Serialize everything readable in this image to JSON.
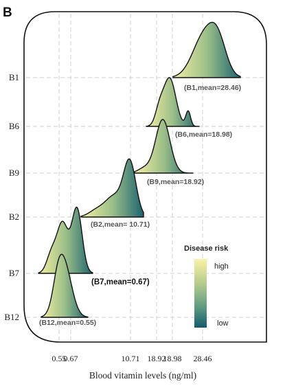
{
  "panel_label": "B",
  "chart_data": {
    "type": "ridgeline",
    "xlabel": "Blood vitamin levels (ng/ml)",
    "x_ticks": [
      "0.55",
      "0.67",
      "10.71",
      "18.92",
      "18.98",
      "28.46"
    ],
    "categories": [
      "B1",
      "B6",
      "B9",
      "B2",
      "B7",
      "B12"
    ],
    "series": [
      {
        "category": "B1",
        "label": "(B1,mean=28.46)",
        "mean": 28.46
      },
      {
        "category": "B6",
        "label": "(B6,mean=18.98)",
        "mean": 18.98
      },
      {
        "category": "B9",
        "label": "(B9,mean=18.92)",
        "mean": 18.92
      },
      {
        "category": "B2",
        "label": "(B2,mean= 10.71)",
        "mean": 10.71
      },
      {
        "category": "B7",
        "label": "(B7,mean=0.67)",
        "mean": 0.67
      },
      {
        "category": "B12",
        "label": "(B12,mean=0.55)",
        "mean": 0.55
      }
    ],
    "legend": {
      "title": "Disease risk",
      "high_label": "high",
      "low_label": "low",
      "colors": [
        "#f7f0a0",
        "#a7c48a",
        "#5a9a80",
        "#175e6e"
      ]
    }
  }
}
